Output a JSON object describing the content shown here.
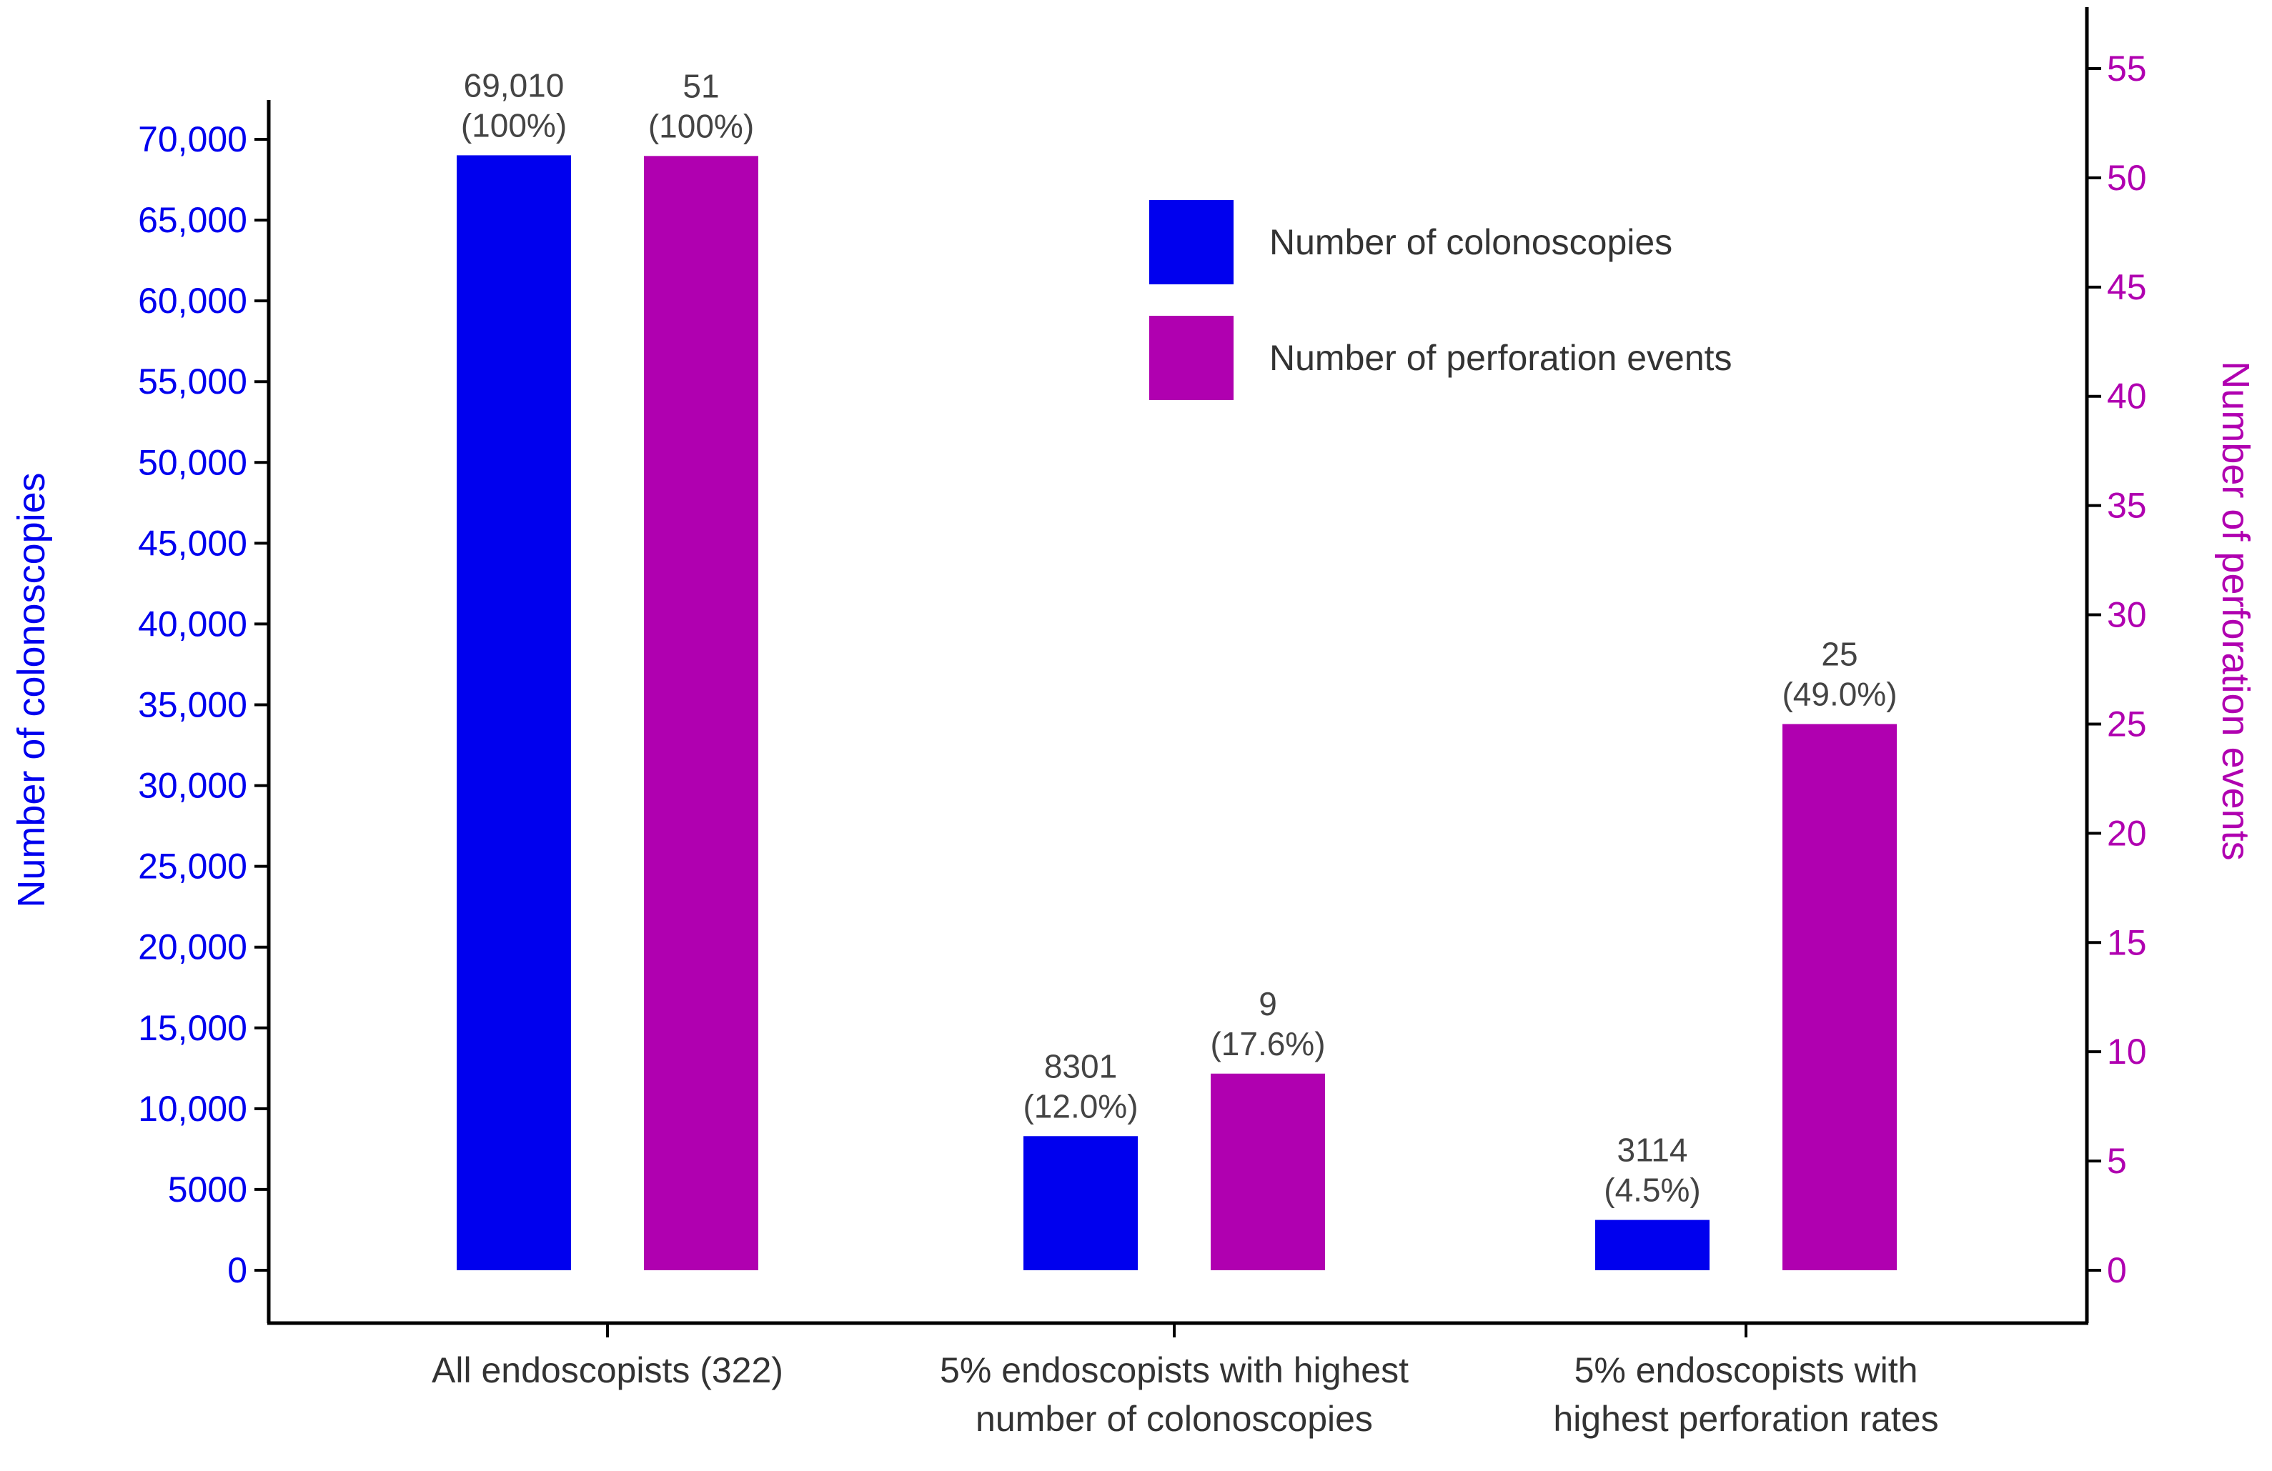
{
  "chart_data": {
    "type": "bar",
    "categories": [
      [
        "All endoscopists (322)"
      ],
      [
        "5% endoscopists with highest",
        "number of colonoscopies"
      ],
      [
        "5% endoscopists with",
        "highest perforation rates"
      ]
    ],
    "series": [
      {
        "name": "Number of colonoscopies",
        "axis": "left",
        "color": "#0000ee",
        "values": [
          69010,
          8301,
          3114
        ],
        "labels": [
          [
            "69,010",
            "(100%)"
          ],
          [
            "8301",
            "(12.0%)"
          ],
          [
            "3114",
            "(4.5%)"
          ]
        ]
      },
      {
        "name": "Number of perforation events",
        "axis": "right",
        "color": "#b000b0",
        "values": [
          51,
          9,
          25
        ],
        "labels": [
          [
            "51",
            "(100%)"
          ],
          [
            "9",
            "(17.6%)"
          ],
          [
            "25",
            "(49.0%)"
          ]
        ]
      }
    ],
    "y_left": {
      "label": "Number of colonoscopies",
      "color": "#0000ee",
      "ylim": [
        0,
        70000
      ],
      "ticks": [
        0,
        5000,
        10000,
        15000,
        20000,
        25000,
        30000,
        35000,
        40000,
        45000,
        50000,
        55000,
        60000,
        65000,
        70000
      ],
      "tick_labels": [
        "0",
        "5000",
        "10,000",
        "15,000",
        "20,000",
        "25,000",
        "30,000",
        "35,000",
        "40,000",
        "45,000",
        "50,000",
        "55,000",
        "60,000",
        "65,000",
        "70,000"
      ]
    },
    "y_right": {
      "label": "Number of perforation events",
      "color": "#b000b0",
      "ylim": [
        0,
        55
      ],
      "ticks": [
        0,
        5,
        10,
        15,
        20,
        25,
        30,
        35,
        40,
        45,
        50,
        55
      ],
      "tick_labels": [
        "0",
        "5",
        "10",
        "15",
        "20",
        "25",
        "30",
        "35",
        "40",
        "45",
        "50",
        "55"
      ]
    },
    "legend": {
      "position": "upper-center-right"
    },
    "grid": false
  }
}
